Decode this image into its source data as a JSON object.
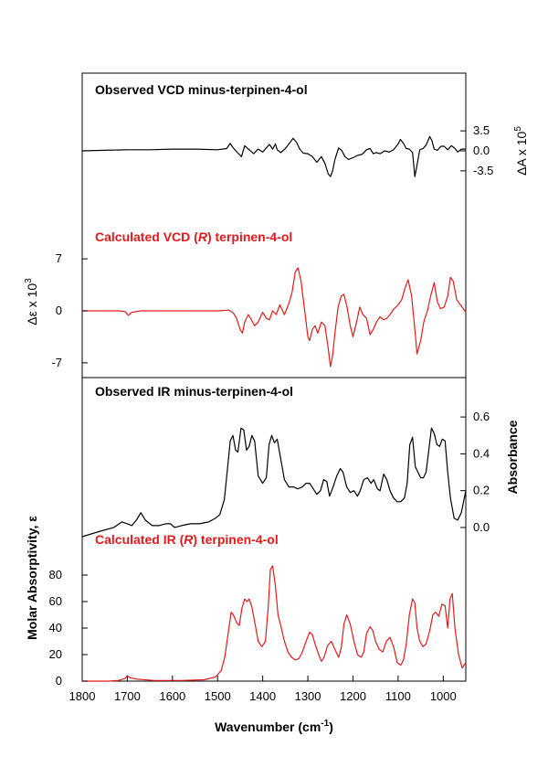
{
  "figure": {
    "panel_top_title": "Observed VCD minus-terpinen-4-ol",
    "panel_vcd_calc_title_pre": "Calculated VCD (",
    "panel_vcd_calc_title_r": "R",
    "panel_vcd_calc_title_post": ") terpinen-4-ol",
    "panel_ir_obs_title": "Observed IR minus-terpinen-4-ol",
    "panel_ir_calc_title_pre": "Calculated IR (",
    "panel_ir_calc_title_r": "R",
    "panel_ir_calc_title_post": ") terpinen-4-ol",
    "xlabel_pre": "Wavenumber (cm",
    "xlabel_sup": "-1",
    "xlabel_post": ")",
    "ylabel_right_top_pre": "ΔA x 10",
    "ylabel_right_top_sup": "5",
    "ylabel_left_top_pre": "Δε x 10",
    "ylabel_left_top_sup": "3",
    "ylabel_right_bottom": "Absorbance",
    "ylabel_left_bottom": "Molar Absorptivity, ε",
    "colors": {
      "observed": "#000000",
      "calculated": "#e31a1c"
    }
  },
  "chart_data": [
    {
      "type": "line",
      "title": "Observed VCD minus-terpinen-4-ol",
      "xlabel": "Wavenumber (cm-1)",
      "ylabel": "ΔA x 10^5",
      "x_range": [
        1800,
        950
      ],
      "ylim": [
        -8,
        8
      ],
      "y_ticks": [
        3.5,
        0.0,
        -3.5
      ],
      "y_tick_labels": [
        "3.5",
        "0.0",
        "-3.5"
      ],
      "axis_side": "right",
      "series": [
        {
          "color": "#000000",
          "x": [
            1800,
            1750,
            1700,
            1650,
            1600,
            1550,
            1500,
            1480,
            1472,
            1465,
            1455,
            1447,
            1440,
            1430,
            1420,
            1410,
            1400,
            1390,
            1385,
            1378,
            1372,
            1368,
            1360,
            1350,
            1340,
            1333,
            1325,
            1318,
            1310,
            1300,
            1290,
            1280,
            1270,
            1262,
            1255,
            1250,
            1245,
            1240,
            1232,
            1225,
            1218,
            1210,
            1200,
            1190,
            1180,
            1170,
            1162,
            1155,
            1148,
            1140,
            1130,
            1120,
            1110,
            1100,
            1095,
            1088,
            1082,
            1075,
            1068,
            1063,
            1058,
            1052,
            1045,
            1038,
            1030,
            1025,
            1020,
            1013,
            1005,
            998,
            990,
            982,
            975,
            968,
            960,
            950
          ],
          "y": [
            0.0,
            0.1,
            0.2,
            0.2,
            0.3,
            0.3,
            0.2,
            0.4,
            1.3,
            0.5,
            -0.4,
            -1.0,
            0.9,
            0.2,
            -0.5,
            0.3,
            -0.2,
            0.7,
            1.1,
            0.3,
            1.2,
            0.2,
            -0.3,
            0.4,
            1.4,
            2.2,
            1.5,
            0.3,
            -0.4,
            -0.5,
            -1.0,
            -2.0,
            -1.0,
            -2.2,
            -4.0,
            -4.5,
            -3.5,
            -1.5,
            0.5,
            0.1,
            -1.0,
            -1.5,
            -1.2,
            -0.8,
            -0.6,
            0.2,
            0.4,
            -0.5,
            -0.3,
            -0.5,
            0.0,
            -0.2,
            0.2,
            1.2,
            2.0,
            1.3,
            0.4,
            0.3,
            -0.3,
            -4.5,
            -2.5,
            0.2,
            0.4,
            1.0,
            2.5,
            1.8,
            0.3,
            0.1,
            0.8,
            0.8,
            0.2,
            0.9,
            0.5,
            -0.2,
            0.3,
            0.3
          ]
        }
      ]
    },
    {
      "type": "line",
      "title": "Calculated VCD (R) terpinen-4-ol",
      "xlabel": "Wavenumber (cm-1)",
      "ylabel": "Δε x 10^3",
      "x_range": [
        1800,
        950
      ],
      "ylim": [
        -8,
        8
      ],
      "y_ticks": [
        7,
        0,
        -7
      ],
      "y_tick_labels": [
        "7",
        "0",
        "-7"
      ],
      "axis_side": "left",
      "series": [
        {
          "color": "#e31a1c",
          "x": [
            1800,
            1720,
            1705,
            1698,
            1690,
            1670,
            1600,
            1500,
            1475,
            1465,
            1458,
            1450,
            1445,
            1440,
            1432,
            1425,
            1418,
            1410,
            1400,
            1392,
            1385,
            1378,
            1370,
            1362,
            1352,
            1342,
            1335,
            1328,
            1322,
            1315,
            1308,
            1300,
            1296,
            1290,
            1284,
            1278,
            1270,
            1262,
            1255,
            1250,
            1245,
            1240,
            1233,
            1226,
            1220,
            1213,
            1206,
            1200,
            1192,
            1185,
            1178,
            1170,
            1162,
            1155,
            1148,
            1140,
            1132,
            1125,
            1118,
            1110,
            1100,
            1092,
            1085,
            1078,
            1070,
            1063,
            1058,
            1050,
            1043,
            1035,
            1028,
            1020,
            1013,
            1006,
            998,
            990,
            984,
            978,
            970,
            962,
            950
          ],
          "y": [
            0.0,
            0.0,
            -0.1,
            -0.6,
            -0.2,
            0.0,
            0.0,
            0.0,
            0.1,
            -0.3,
            -1.0,
            -2.5,
            -3.0,
            -1.5,
            -0.5,
            -1.2,
            -2.0,
            -1.5,
            -0.2,
            -1.0,
            -1.2,
            0.0,
            -0.5,
            0.8,
            -0.5,
            1.0,
            2.5,
            5.2,
            5.8,
            4.0,
            0.5,
            -3.5,
            -4.0,
            -2.5,
            -2.0,
            -3.0,
            -1.5,
            -2.0,
            -5.0,
            -7.5,
            -6.0,
            -3.0,
            0.5,
            2.0,
            2.2,
            0.5,
            -2.0,
            -3.5,
            -1.5,
            0.5,
            -0.5,
            -1.0,
            -3.2,
            -2.5,
            -1.5,
            -0.8,
            -1.2,
            -1.0,
            -0.5,
            0.2,
            0.8,
            1.5,
            3.0,
            4.2,
            2.0,
            -2.5,
            -5.8,
            -4.0,
            -1.5,
            0.0,
            2.0,
            3.8,
            1.2,
            0.3,
            0.5,
            2.0,
            4.5,
            4.0,
            1.5,
            0.8,
            -0.2
          ]
        }
      ]
    },
    {
      "type": "line",
      "title": "Observed IR minus-terpinen-4-ol",
      "xlabel": "Wavenumber (cm-1)",
      "ylabel": "Absorbance",
      "x_range": [
        1800,
        950
      ],
      "ylim": [
        -0.04,
        0.68
      ],
      "y_ticks": [
        0.0,
        0.2,
        0.4,
        0.6
      ],
      "y_tick_labels": [
        "0.0",
        "0.2",
        "0.4",
        "0.6"
      ],
      "axis_side": "right",
      "series": [
        {
          "color": "#000000",
          "x": [
            1800,
            1760,
            1730,
            1712,
            1700,
            1690,
            1680,
            1670,
            1660,
            1645,
            1630,
            1615,
            1605,
            1595,
            1580,
            1560,
            1540,
            1520,
            1505,
            1495,
            1485,
            1478,
            1472,
            1466,
            1460,
            1455,
            1448,
            1442,
            1436,
            1430,
            1424,
            1418,
            1410,
            1400,
            1392,
            1386,
            1380,
            1374,
            1368,
            1362,
            1352,
            1342,
            1332,
            1322,
            1312,
            1304,
            1296,
            1288,
            1280,
            1272,
            1265,
            1258,
            1252,
            1244,
            1236,
            1228,
            1222,
            1214,
            1206,
            1198,
            1190,
            1184,
            1176,
            1168,
            1160,
            1154,
            1146,
            1140,
            1132,
            1125,
            1118,
            1110,
            1102,
            1094,
            1086,
            1080,
            1074,
            1068,
            1062,
            1056,
            1050,
            1044,
            1038,
            1032,
            1026,
            1020,
            1014,
            1008,
            1002,
            996,
            990,
            984,
            976,
            968,
            960,
            950
          ],
          "y": [
            -0.05,
            -0.02,
            0.0,
            0.03,
            0.02,
            0.01,
            0.04,
            0.08,
            0.04,
            0.01,
            0.01,
            0.02,
            0.02,
            0.0,
            0.01,
            0.02,
            0.02,
            0.03,
            0.05,
            0.07,
            0.15,
            0.32,
            0.47,
            0.5,
            0.42,
            0.41,
            0.54,
            0.53,
            0.42,
            0.44,
            0.5,
            0.47,
            0.28,
            0.24,
            0.27,
            0.45,
            0.5,
            0.46,
            0.48,
            0.4,
            0.26,
            0.22,
            0.22,
            0.21,
            0.22,
            0.24,
            0.24,
            0.21,
            0.18,
            0.2,
            0.26,
            0.25,
            0.17,
            0.22,
            0.28,
            0.32,
            0.3,
            0.22,
            0.19,
            0.2,
            0.17,
            0.2,
            0.26,
            0.27,
            0.24,
            0.26,
            0.21,
            0.2,
            0.29,
            0.26,
            0.2,
            0.16,
            0.14,
            0.14,
            0.16,
            0.24,
            0.45,
            0.49,
            0.33,
            0.3,
            0.27,
            0.27,
            0.3,
            0.42,
            0.54,
            0.51,
            0.45,
            0.44,
            0.48,
            0.47,
            0.3,
            0.16,
            0.05,
            0.04,
            0.08,
            0.2
          ]
        }
      ]
    },
    {
      "type": "line",
      "title": "Calculated IR (R) terpinen-4-ol",
      "xlabel": "Wavenumber (cm-1)",
      "ylabel": "Molar Absorptivity, ε",
      "x_range": [
        1800,
        950
      ],
      "ylim": [
        0,
        100
      ],
      "y_ticks": [
        0,
        20,
        40,
        60,
        80
      ],
      "y_tick_labels": [
        "0",
        "20",
        "40",
        "60",
        "80"
      ],
      "axis_side": "left",
      "series": [
        {
          "color": "#e31a1c",
          "x": [
            1800,
            1740,
            1720,
            1705,
            1700,
            1694,
            1680,
            1640,
            1580,
            1530,
            1505,
            1492,
            1484,
            1477,
            1470,
            1465,
            1458,
            1452,
            1446,
            1440,
            1435,
            1430,
            1424,
            1418,
            1410,
            1402,
            1394,
            1388,
            1383,
            1378,
            1372,
            1366,
            1360,
            1352,
            1344,
            1336,
            1328,
            1320,
            1312,
            1304,
            1296,
            1290,
            1284,
            1276,
            1270,
            1264,
            1256,
            1248,
            1240,
            1232,
            1226,
            1220,
            1214,
            1206,
            1198,
            1190,
            1182,
            1176,
            1170,
            1162,
            1156,
            1150,
            1142,
            1134,
            1126,
            1118,
            1110,
            1102,
            1094,
            1088,
            1082,
            1075,
            1068,
            1063,
            1058,
            1052,
            1045,
            1038,
            1030,
            1023,
            1017,
            1010,
            1003,
            996,
            990,
            985,
            980,
            974,
            966,
            958,
            950
          ],
          "y": [
            0,
            0,
            0.5,
            2,
            4,
            2.5,
            1.5,
            0.5,
            0.5,
            1,
            3,
            8,
            18,
            35,
            52,
            50,
            44,
            42,
            55,
            62,
            60,
            62,
            56,
            45,
            30,
            26,
            30,
            55,
            84,
            87,
            72,
            50,
            42,
            30,
            22,
            18,
            16,
            17,
            22,
            30,
            37,
            35,
            28,
            20,
            15,
            18,
            27,
            30,
            24,
            18,
            25,
            43,
            50,
            43,
            30,
            20,
            18,
            22,
            36,
            41,
            38,
            30,
            24,
            22,
            30,
            33,
            26,
            14,
            12,
            16,
            28,
            50,
            62,
            59,
            40,
            30,
            26,
            28,
            38,
            50,
            52,
            49,
            58,
            57,
            40,
            62,
            66,
            40,
            20,
            10,
            14
          ]
        }
      ]
    }
  ]
}
